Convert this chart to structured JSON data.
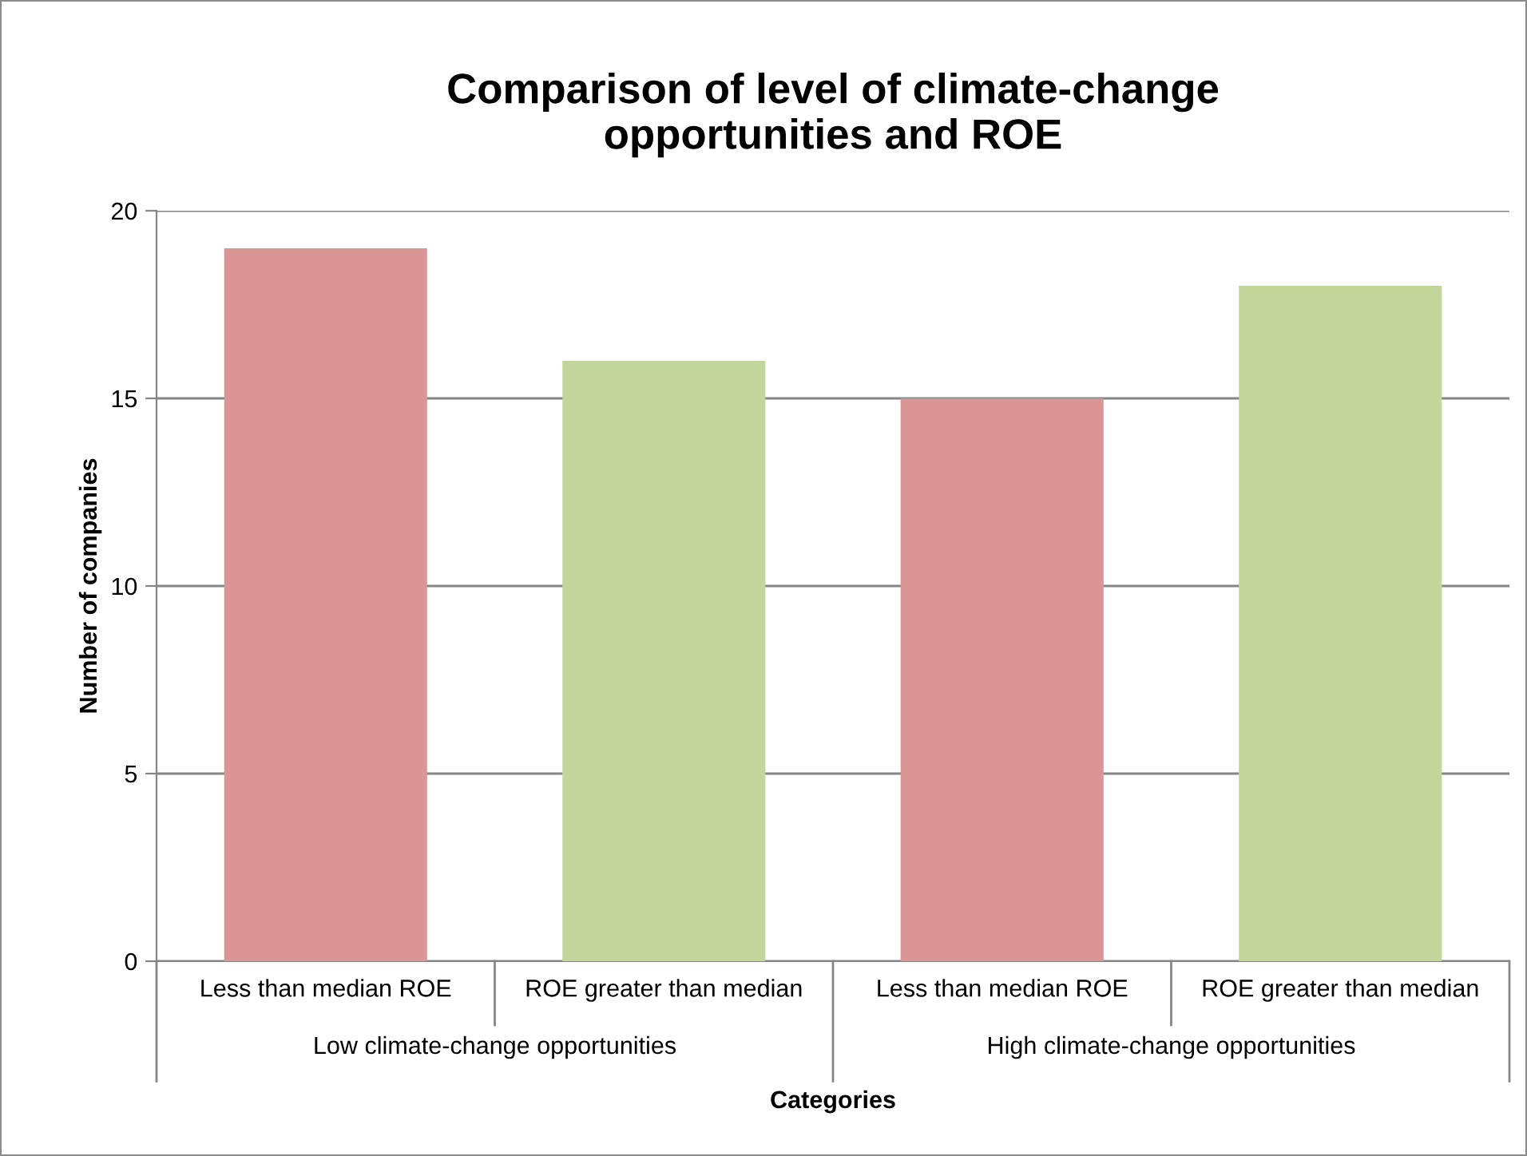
{
  "chart_data": {
    "type": "bar",
    "title": "Comparison of level of climate-change\nopportunities and ROE",
    "xlabel": "Categories",
    "ylabel": "Number of companies",
    "categories": [
      "Less than median ROE",
      "ROE greater than median",
      "Less than median ROE",
      "ROE greater than median"
    ],
    "values": [
      19,
      16,
      15,
      18
    ],
    "colors": [
      "#d99694",
      "#c3d69b",
      "#d99694",
      "#c3d69b"
    ],
    "annotations": [
      "Low climate-change opportunities",
      "High climate-change opportunities"
    ],
    "ylim": [
      0,
      20
    ],
    "yticks": [
      0,
      5,
      10,
      15,
      20
    ],
    "grid": "y"
  }
}
